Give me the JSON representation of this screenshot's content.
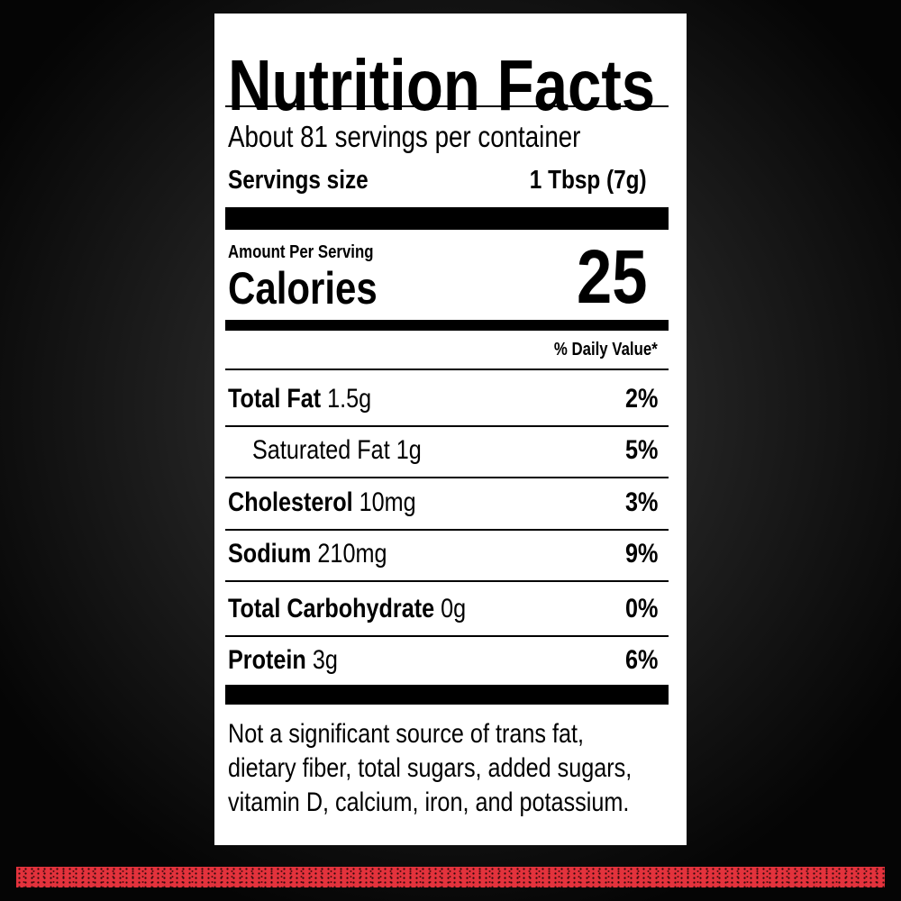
{
  "title": "Nutrition Facts",
  "servings_per_container": "About 81 servings per container",
  "serving_size": {
    "label": "Servings size",
    "value": "1 Tbsp (7g)"
  },
  "amount_per_serving": "Amount Per Serving",
  "calories": {
    "label": "Calories",
    "value": "25"
  },
  "daily_value_header": "% Daily Value*",
  "nutrients": [
    {
      "name": "Total Fat",
      "amount": "1.5g",
      "dv": "2%",
      "bold": true
    },
    {
      "name": "Saturated Fat",
      "amount": "1g",
      "dv": "5%",
      "bold": false
    },
    {
      "name": "Cholesterol",
      "amount": "10mg",
      "dv": "3%",
      "bold": true
    },
    {
      "name": "Sodium",
      "amount": "210mg",
      "dv": "9%",
      "bold": true
    },
    {
      "name": "Total Carbohydrate",
      "amount": "0g",
      "dv": "0%",
      "bold": true
    },
    {
      "name": "Protein",
      "amount": "3g",
      "dv": "6%",
      "bold": true
    }
  ],
  "footnote": [
    "Not a significant source of trans fat,",
    "dietary fiber, total sugars, added sugars,",
    "vitamin D, calcium, iron, and potassium."
  ]
}
